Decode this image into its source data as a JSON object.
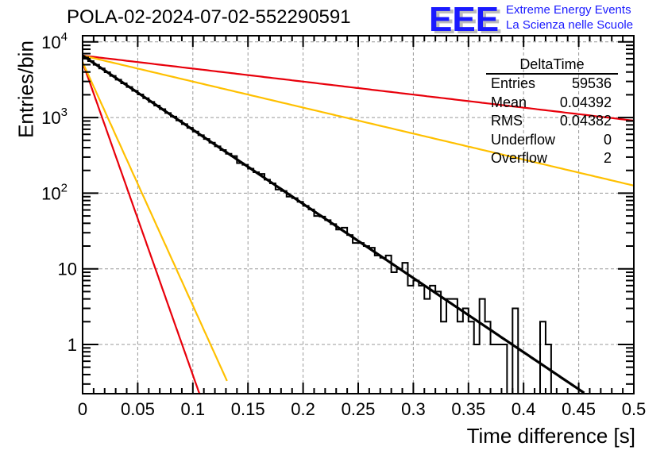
{
  "title": "POLA-02-2024-07-02-552290591",
  "logo": {
    "mark": "EEE",
    "line1": "Extreme Energy Events",
    "line2": "La Scienza nelle Scuole",
    "color": "#1a1aff"
  },
  "stats_box": {
    "name": "DeltaTime",
    "rows": [
      {
        "label": "Entries",
        "value": "59536"
      },
      {
        "label": "Mean",
        "value": "0.04392"
      },
      {
        "label": "RMS",
        "value": "0.04382"
      },
      {
        "label": "Underflow",
        "value": "0"
      },
      {
        "label": "Overflow",
        "value": "2"
      }
    ]
  },
  "chart_data": {
    "type": "histogram",
    "title": "POLA-02-2024-07-02-552290591",
    "xlabel": "Time difference [s]",
    "ylabel": "Entries/bin",
    "xlim": [
      0,
      0.5
    ],
    "ylim": [
      0.224,
      12000
    ],
    "yscale": "log",
    "grid": true,
    "xticks": [
      "0",
      "0.05",
      "0.1",
      "0.15",
      "0.2",
      "0.25",
      "0.3",
      "0.35",
      "0.4",
      "0.45",
      "0.5"
    ],
    "xtick_values": [
      0,
      0.05,
      0.1,
      0.15,
      0.2,
      0.25,
      0.3,
      0.35,
      0.4,
      0.45,
      0.5
    ],
    "yticks": [
      "1",
      "10",
      "10^2",
      "10^3",
      "10^4"
    ],
    "ytick_values": [
      1,
      10,
      100,
      1000,
      10000
    ],
    "bin_width": 0.005,
    "bins": [
      6240,
      5570,
      4980,
      4450,
      3970,
      3550,
      3170,
      2830,
      2530,
      2260,
      2020,
      1800,
      1610,
      1440,
      1290,
      1150,
      1030,
      916,
      819,
      731,
      653,
      584,
      521,
      466,
      416,
      372,
      332,
      310,
      250,
      237,
      211,
      189,
      180,
      151,
      135,
      112,
      107,
      90,
      86,
      77,
      68,
      61,
      50,
      49,
      44,
      39,
      33,
      35,
      28,
      22,
      22,
      20,
      19,
      15,
      14,
      15,
      9,
      10,
      12,
      6,
      7,
      6,
      4,
      6,
      5,
      2,
      4,
      4,
      2,
      3,
      2,
      1,
      4,
      2,
      1,
      1,
      1,
      0,
      3,
      0,
      0,
      0,
      0,
      2,
      1,
      0,
      0,
      0,
      0,
      0,
      0,
      0,
      0,
      0,
      0,
      0,
      0,
      0,
      0,
      0
    ],
    "series": [
      {
        "name": "fit",
        "color": "#000000",
        "function": "exponential",
        "amplitude": 6600,
        "tau": 0.0443,
        "x_end": 0.455
      },
      {
        "name": "red-slow",
        "color": "#e8000b",
        "function": "exponential",
        "amplitude": 6600,
        "end_value": 910
      },
      {
        "name": "yellow-slow",
        "color": "#ffc000",
        "function": "exponential",
        "amplitude": 6600,
        "end_value": 126
      },
      {
        "name": "red-fast",
        "color": "#e8000b",
        "function": "exponential",
        "amplitude": 5400,
        "tau": 0.0105,
        "x_end": 0.107
      },
      {
        "name": "yellow-fast",
        "color": "#ffc000",
        "function": "exponential",
        "amplitude": 5400,
        "tau": 0.0135,
        "x_end": 0.131
      }
    ]
  }
}
